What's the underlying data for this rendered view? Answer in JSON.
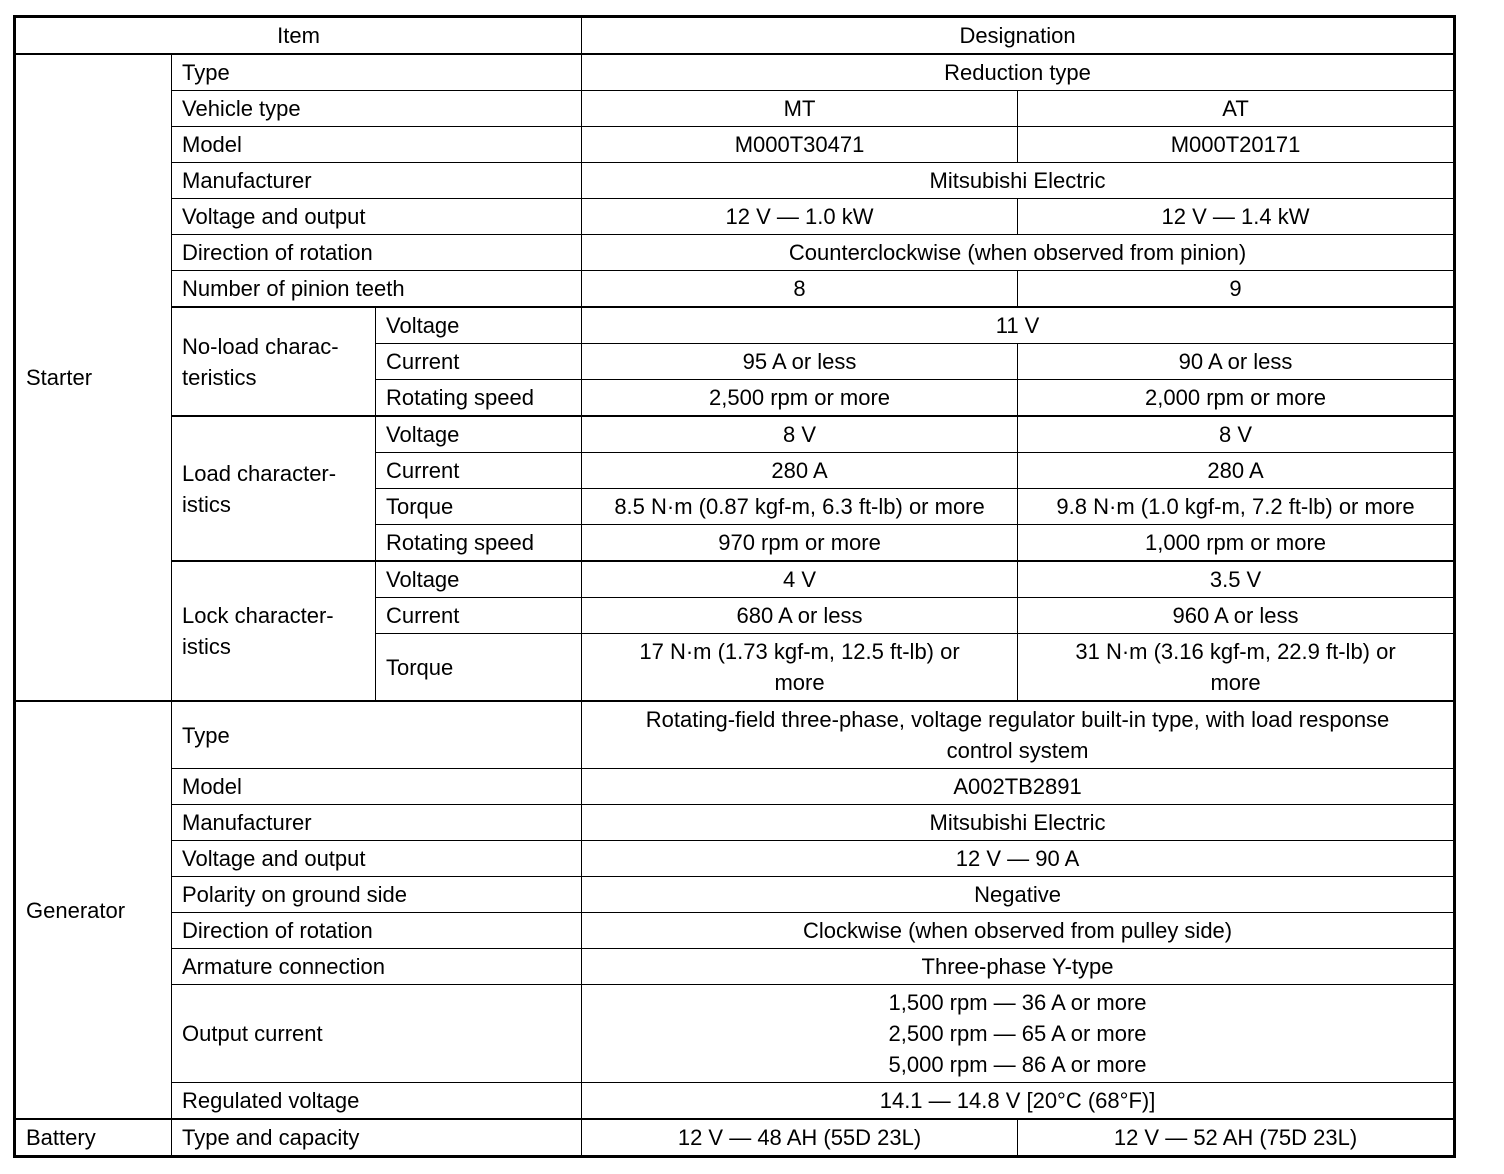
{
  "header": {
    "item": "Item",
    "designation": "Designation"
  },
  "sections": [
    {
      "name": "Starter",
      "items": [
        {
          "label": "Type",
          "value": "Reduction type"
        },
        {
          "label": "Vehicle type",
          "mt": "MT",
          "at": "AT"
        },
        {
          "label": "Model",
          "mt": "M000T30471",
          "at": "M000T20171"
        },
        {
          "label": "Manufacturer",
          "value": "Mitsubishi Electric"
        },
        {
          "label": "Voltage and output",
          "mt": "12 V — 1.0 kW",
          "at": "12 V — 1.4 kW"
        },
        {
          "label": "Direction of rotation",
          "value": "Counterclockwise (when observed from pinion)"
        },
        {
          "label": "Number of pinion teeth",
          "mt": "8",
          "at": "9"
        },
        {
          "label": "No-load charac-\nteristics",
          "sub": [
            {
              "label": "Voltage",
              "value": "11 V"
            },
            {
              "label": "Current",
              "mt": "95 A or less",
              "at": "90 A or less"
            },
            {
              "label": "Rotating speed",
              "mt": "2,500 rpm or more",
              "at": "2,000 rpm or more"
            }
          ]
        },
        {
          "label": "Load character-\nistics",
          "sub": [
            {
              "label": "Voltage",
              "mt": "8 V",
              "at": "8 V"
            },
            {
              "label": "Current",
              "mt": "280 A",
              "at": "280 A"
            },
            {
              "label": "Torque",
              "mt": "8.5 N·m (0.87 kgf-m, 6.3 ft-lb) or more",
              "at": "9.8 N·m (1.0 kgf-m, 7.2 ft-lb) or more"
            },
            {
              "label": "Rotating speed",
              "mt": "970 rpm or more",
              "at": "1,000 rpm or more"
            }
          ]
        },
        {
          "label": "Lock character-\nistics",
          "sub": [
            {
              "label": "Voltage",
              "mt": "4 V",
              "at": "3.5 V"
            },
            {
              "label": "Current",
              "mt": "680 A or less",
              "at": "960 A or less"
            },
            {
              "label": "Torque",
              "mt": "17 N·m (1.73 kgf-m, 12.5 ft-lb) or\nmore",
              "at": "31 N·m (3.16 kgf-m, 22.9 ft-lb) or\nmore"
            }
          ]
        }
      ]
    },
    {
      "name": "Generator",
      "items": [
        {
          "label": "Type",
          "value": "Rotating-field three-phase, voltage regulator built-in type, with load response\ncontrol system"
        },
        {
          "label": "Model",
          "value": "A002TB2891"
        },
        {
          "label": "Manufacturer",
          "value": "Mitsubishi Electric"
        },
        {
          "label": "Voltage and output",
          "value": "12 V — 90 A"
        },
        {
          "label": "Polarity on ground side",
          "value": "Negative"
        },
        {
          "label": "Direction of rotation",
          "value": "Clockwise (when observed from pulley side)"
        },
        {
          "label": "Armature connection",
          "value": "Three-phase Y-type"
        },
        {
          "label": "Output current",
          "value": "1,500 rpm — 36 A or more\n2,500 rpm — 65 A or more\n5,000 rpm — 86 A or more"
        },
        {
          "label": "Regulated voltage",
          "value": "14.1 — 14.8 V [20°C (68°F)]"
        }
      ]
    },
    {
      "name": "Battery",
      "items": [
        {
          "label": "Type and capacity",
          "mt": "12 V — 48 AH (55D 23L)",
          "at": "12 V — 52 AH (75D 23L)"
        }
      ]
    }
  ]
}
